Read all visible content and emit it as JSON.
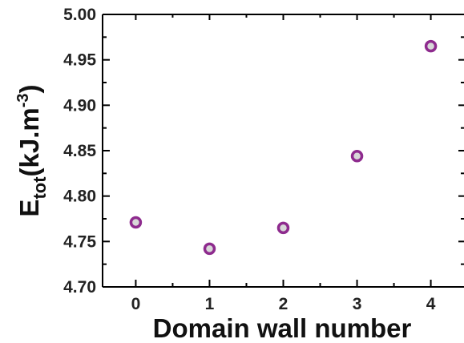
{
  "chart_data": {
    "type": "scatter",
    "xlabel": "Domain wall number",
    "ylabel": {
      "main": "E",
      "sub": "tot",
      "unit": "(kJ.m",
      "sup": "-3",
      "close": ")"
    },
    "x": [
      0,
      1,
      2,
      3,
      4
    ],
    "y": [
      4.771,
      4.742,
      4.765,
      4.844,
      4.965
    ],
    "xlim": [
      -0.45,
      4.45
    ],
    "ylim": [
      4.7,
      5.0
    ],
    "xticks": [
      "0",
      "1",
      "2",
      "3",
      "4"
    ],
    "yticks": [
      "4.70",
      "4.75",
      "4.80",
      "4.85",
      "4.90",
      "4.95",
      "5.00"
    ],
    "grid": false,
    "legend": "none",
    "marker_color": "#8e2b8e",
    "marker_fill": "#d8d8d8"
  }
}
